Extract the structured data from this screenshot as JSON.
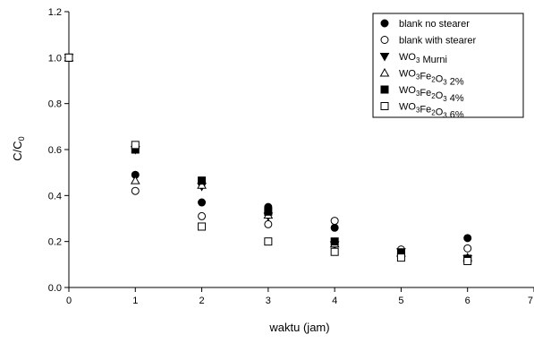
{
  "chart_data": {
    "type": "scatter",
    "title": "",
    "xlabel": "waktu (jam)",
    "ylabel_main": "C/C",
    "ylabel_sub": "0",
    "xlim": [
      0,
      7
    ],
    "ylim": [
      0,
      1.2
    ],
    "xticks": [
      0,
      1,
      2,
      3,
      4,
      5,
      6,
      7
    ],
    "yticks": [
      0.0,
      0.2,
      0.4,
      0.6,
      0.8,
      1.0,
      1.2
    ],
    "ytick_labels": [
      "0.0",
      "0.2",
      "0.4",
      "0.6",
      "0.8",
      "1.0",
      "1.2"
    ],
    "grid": false,
    "legend_position": "top-right",
    "series": [
      {
        "name_parts": [
          {
            "t": "blank no stearer"
          }
        ],
        "marker": "circle-filled",
        "points": [
          [
            0,
            1.0
          ],
          [
            1,
            0.49
          ],
          [
            2,
            0.37
          ],
          [
            3,
            0.35
          ],
          [
            4,
            0.26
          ],
          [
            5,
            0.15
          ],
          [
            6,
            0.215
          ]
        ]
      },
      {
        "name_parts": [
          {
            "t": "blank with stearer"
          }
        ],
        "marker": "circle-open",
        "points": [
          [
            0,
            1.0
          ],
          [
            1,
            0.42
          ],
          [
            2,
            0.31
          ],
          [
            3,
            0.275
          ],
          [
            4,
            0.29
          ],
          [
            5,
            0.165
          ],
          [
            6,
            0.17
          ]
        ]
      },
      {
        "name_parts": [
          {
            "t": "WO"
          },
          {
            "t": "3",
            "sub": true
          },
          {
            "t": " Murni"
          }
        ],
        "marker": "triangle-down-filled",
        "points": [
          [
            0,
            1.0
          ],
          [
            1,
            0.6
          ],
          [
            2,
            0.44
          ],
          [
            3,
            0.31
          ],
          [
            4,
            0.185
          ],
          [
            5,
            0.155
          ],
          [
            6,
            0.125
          ]
        ]
      },
      {
        "name_parts": [
          {
            "t": "WO"
          },
          {
            "t": "3",
            "sub": true
          },
          {
            "t": "Fe"
          },
          {
            "t": "2",
            "sub": true
          },
          {
            "t": "O"
          },
          {
            "t": "3",
            "sub": true
          },
          {
            "t": " 2%"
          }
        ],
        "marker": "triangle-up-open",
        "points": [
          [
            0,
            1.0
          ],
          [
            1,
            0.465
          ],
          [
            2,
            0.445
          ],
          [
            3,
            0.315
          ],
          [
            4,
            0.19
          ],
          [
            5,
            0.15
          ],
          [
            6,
            0.13
          ]
        ]
      },
      {
        "name_parts": [
          {
            "t": "WO"
          },
          {
            "t": "3",
            "sub": true
          },
          {
            "t": "Fe"
          },
          {
            "t": "2",
            "sub": true
          },
          {
            "t": "O"
          },
          {
            "t": "3",
            "sub": true
          },
          {
            "t": " 4%"
          }
        ],
        "marker": "square-filled",
        "points": [
          [
            0,
            1.0
          ],
          [
            1,
            0.6
          ],
          [
            2,
            0.465
          ],
          [
            3,
            0.33
          ],
          [
            4,
            0.2
          ],
          [
            5,
            0.15
          ],
          [
            6,
            0.125
          ]
        ]
      },
      {
        "name_parts": [
          {
            "t": "WO"
          },
          {
            "t": "3",
            "sub": true
          },
          {
            "t": "Fe"
          },
          {
            "t": "2",
            "sub": true
          },
          {
            "t": "O"
          },
          {
            "t": "3",
            "sub": true
          },
          {
            "t": " 6%"
          }
        ],
        "marker": "square-open",
        "points": [
          [
            0,
            1.0
          ],
          [
            1,
            0.62
          ],
          [
            2,
            0.265
          ],
          [
            3,
            0.2
          ],
          [
            4,
            0.155
          ],
          [
            5,
            0.13
          ],
          [
            6,
            0.115
          ]
        ]
      }
    ]
  }
}
